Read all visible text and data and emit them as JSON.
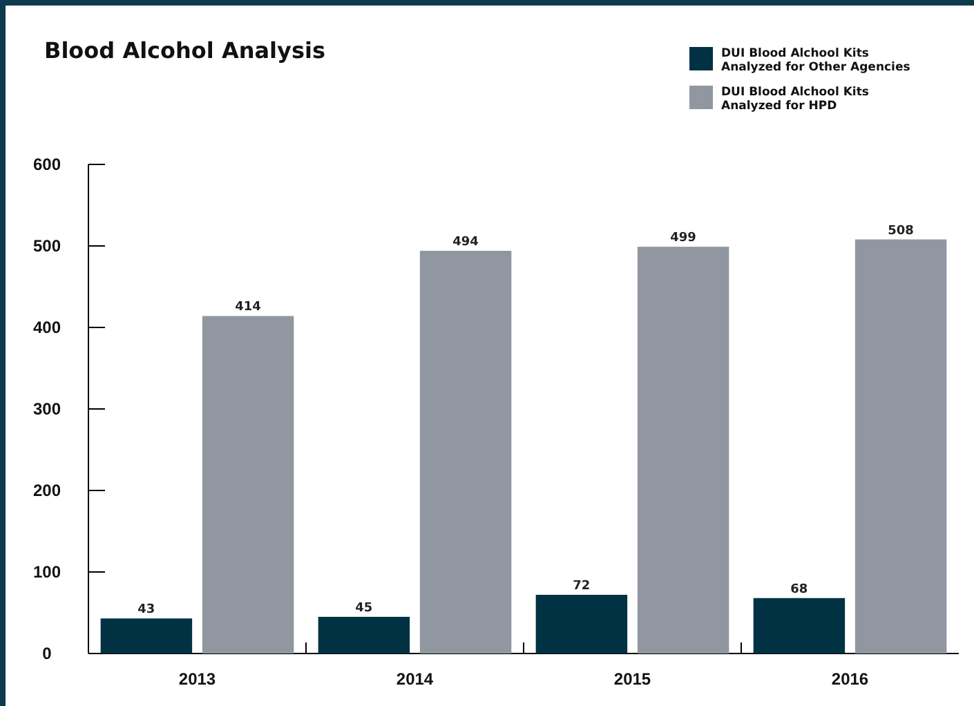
{
  "chart_data": {
    "type": "bar",
    "title": "Blood Alcohol Analysis",
    "categories": [
      "2013",
      "2014",
      "2015",
      "2016"
    ],
    "series": [
      {
        "name": "DUI Blood Alchool Kits Analyzed for Other Agencies",
        "color": "#013243",
        "values": [
          43,
          45,
          72,
          68
        ]
      },
      {
        "name": "DUI Blood Alchool Kits Analyzed for HPD",
        "color": "#9097a1",
        "values": [
          414,
          494,
          499,
          508
        ]
      }
    ],
    "ylim": [
      0,
      600
    ],
    "yticks": [
      0,
      100,
      200,
      300,
      400,
      500,
      600
    ],
    "data_labels": true,
    "legend": "top right",
    "grid": false
  }
}
